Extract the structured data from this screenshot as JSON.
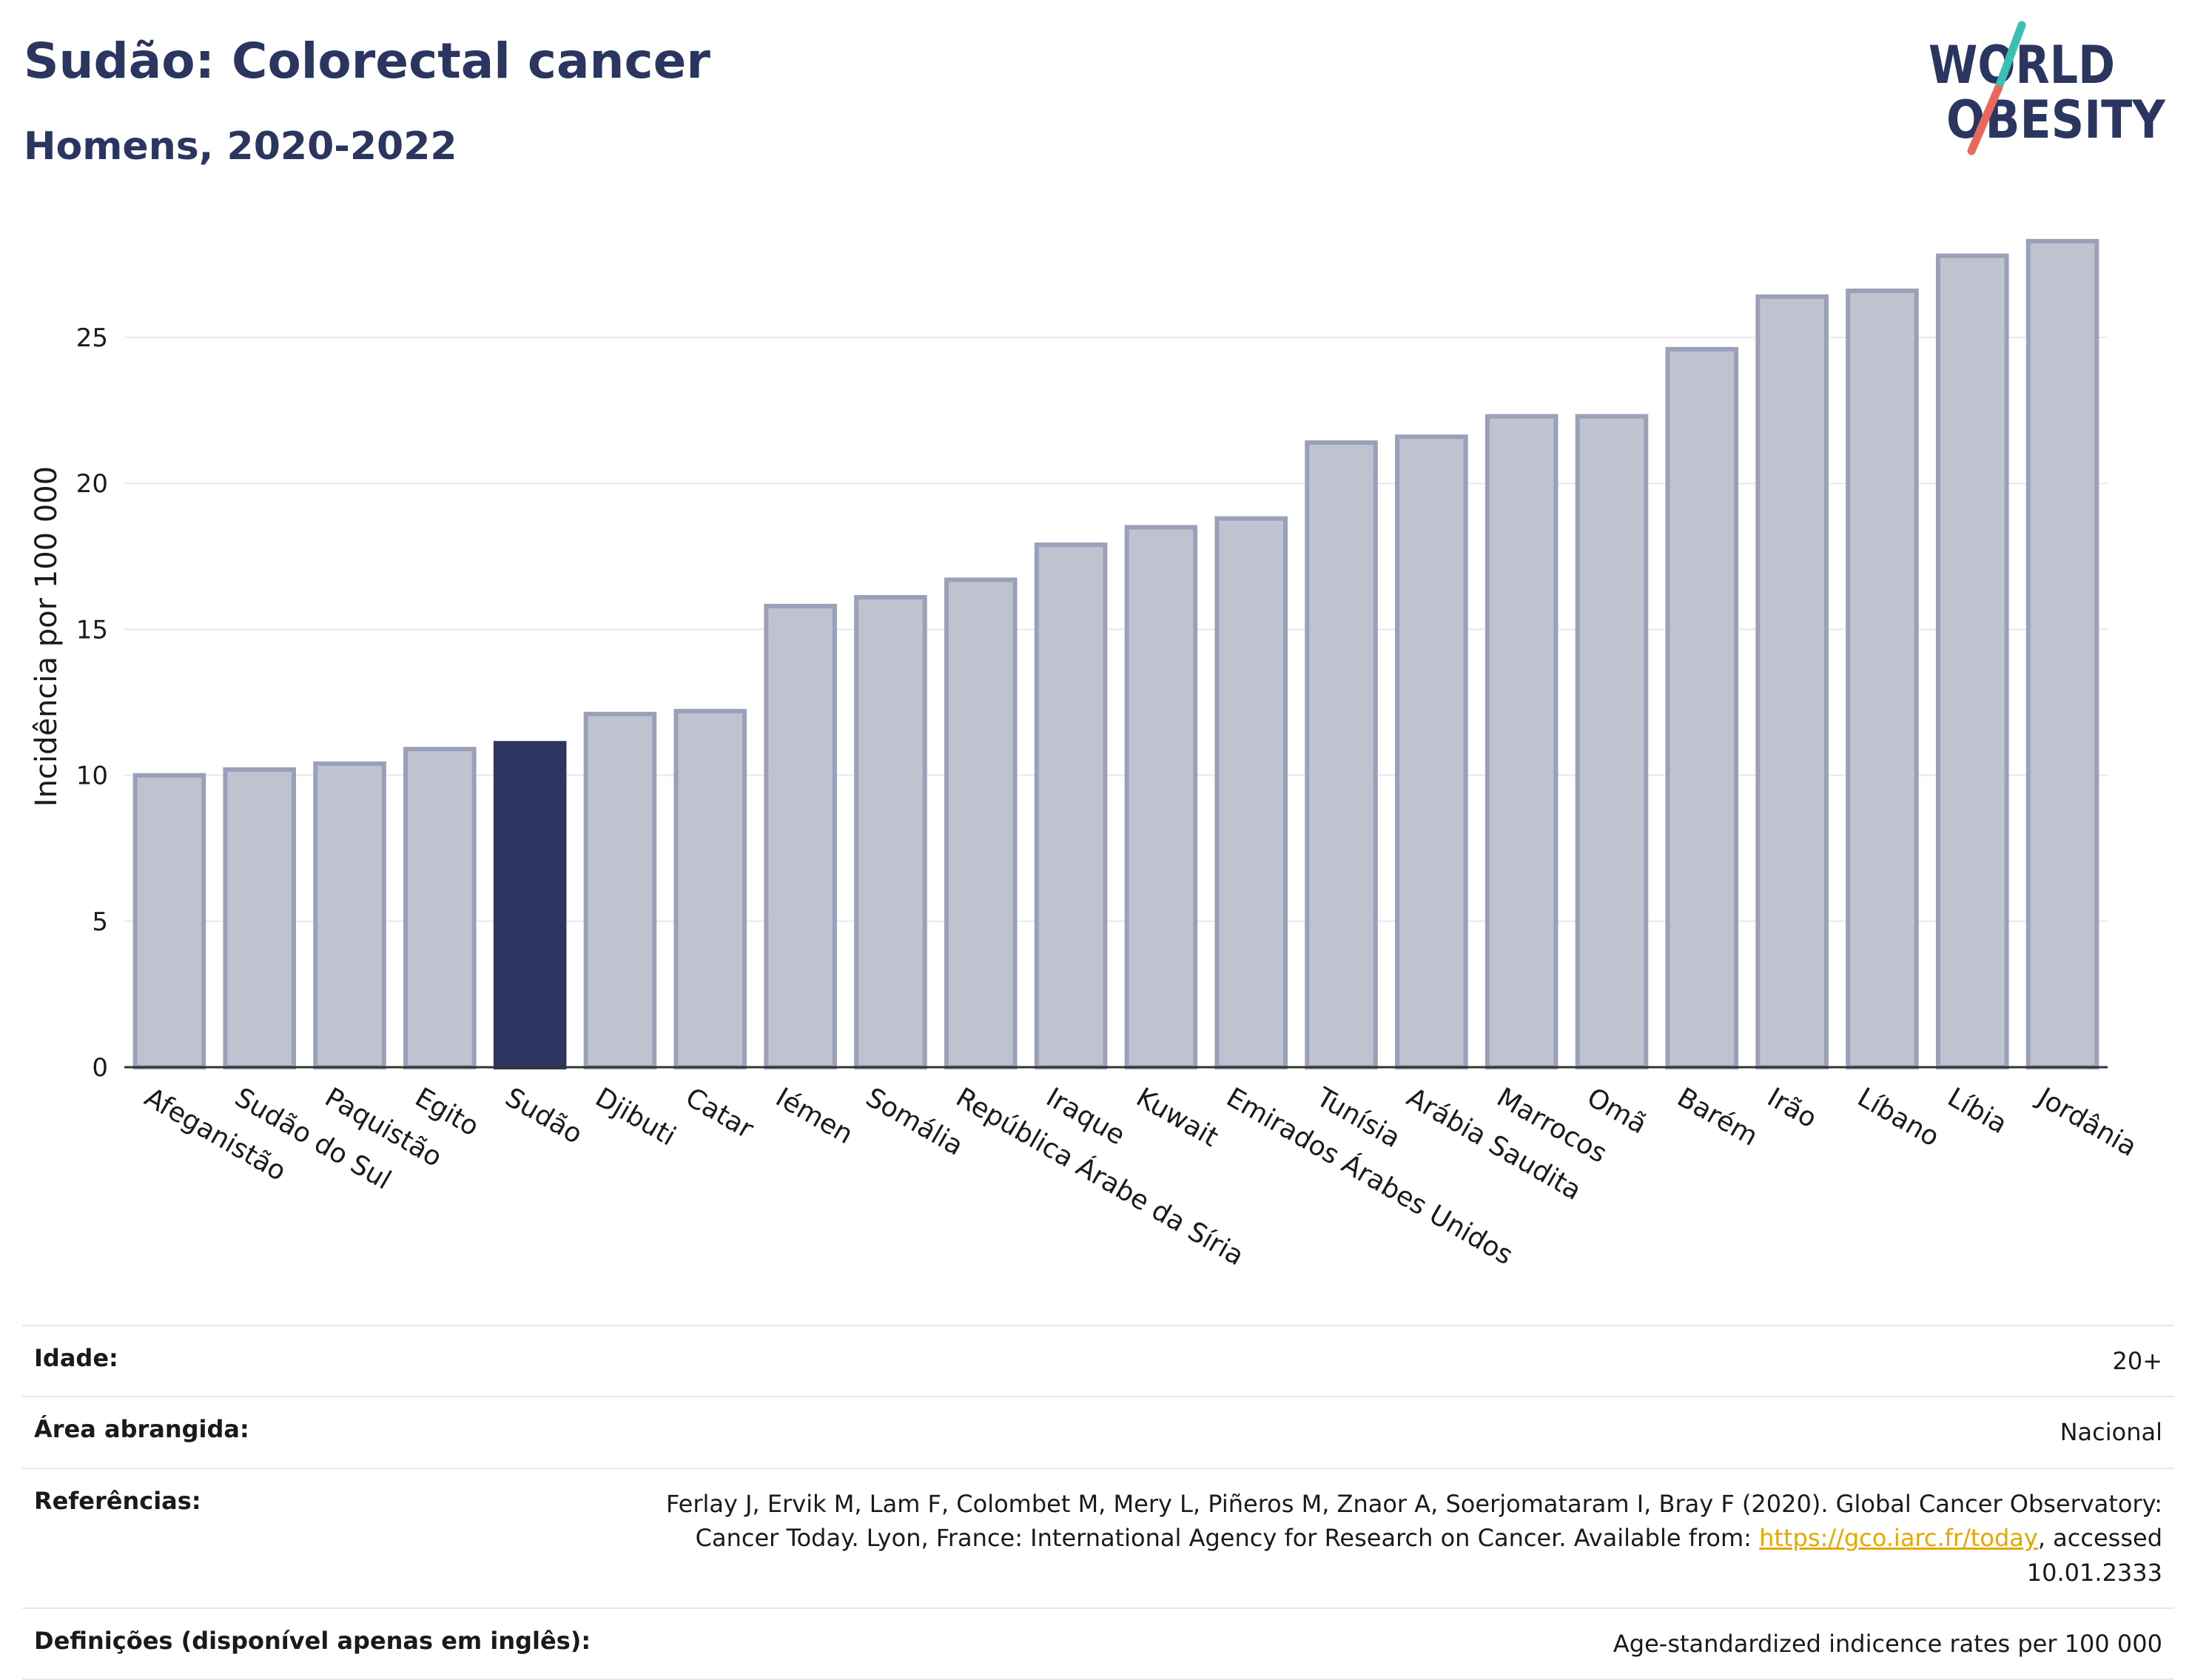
{
  "header": {
    "title": "Sudão: Colorectal cancer",
    "subtitle": "Homens, 2020-2022"
  },
  "logo": {
    "line1": "WORLD",
    "line2": "OBESITY",
    "colors": {
      "text": "#2a3560",
      "slash_teal": "#3bbfb4",
      "slash_red": "#e8695b"
    }
  },
  "chart_data": {
    "type": "bar",
    "ylabel": "Incidência por 100 000",
    "xlabel": "",
    "ylim": [
      0,
      28.5
    ],
    "yticks": [
      0,
      5,
      10,
      15,
      20,
      25
    ],
    "grid": true,
    "highlight_category": "Sudão",
    "categories": [
      "Afeganistão",
      "Sudão do Sul",
      "Paquistão",
      "Egito",
      "Sudão",
      "Djibuti",
      "Catar",
      "Iémen",
      "Somália",
      "República Árabe da Síria",
      "Iraque",
      "Kuwait",
      "Emirados Árabes Unidos",
      "Tunísia",
      "Arábia Saudita",
      "Marrocos",
      "Omã",
      "Barém",
      "Irão",
      "Líbano",
      "Líbia",
      "Jordânia"
    ],
    "values": [
      10.0,
      10.2,
      10.4,
      10.9,
      11.1,
      12.1,
      12.2,
      15.8,
      16.1,
      16.7,
      17.9,
      18.5,
      18.8,
      21.4,
      21.6,
      22.3,
      22.3,
      24.6,
      26.4,
      26.6,
      27.8,
      28.3
    ],
    "colors": {
      "bar": "#bfc2cf",
      "bar_edge": "#9aa0b8",
      "highlight": "#2b3661",
      "grid": "#e6e8ee",
      "axis": "#333333"
    }
  },
  "info": {
    "rows": [
      {
        "label": "Idade:",
        "value": "20+"
      },
      {
        "label": "Área abrangida:",
        "value": "Nacional"
      },
      {
        "label": "Referências:",
        "ref_text_before": "Ferlay J, Ervik M, Lam F, Colombet M, Mery L, Piñeros M, Znaor A, Soerjomataram I, Bray F (2020). Global Cancer Observatory: Cancer Today. Lyon, France: International Agency for Research on Cancer. Available from: ",
        "ref_link": "https://gco.iarc.fr/today",
        "ref_text_after": ", accessed 10.01.2333"
      },
      {
        "label": "Definições (disponível apenas em inglês):",
        "value": "Age-standardized indicence rates per 100 000"
      }
    ]
  }
}
